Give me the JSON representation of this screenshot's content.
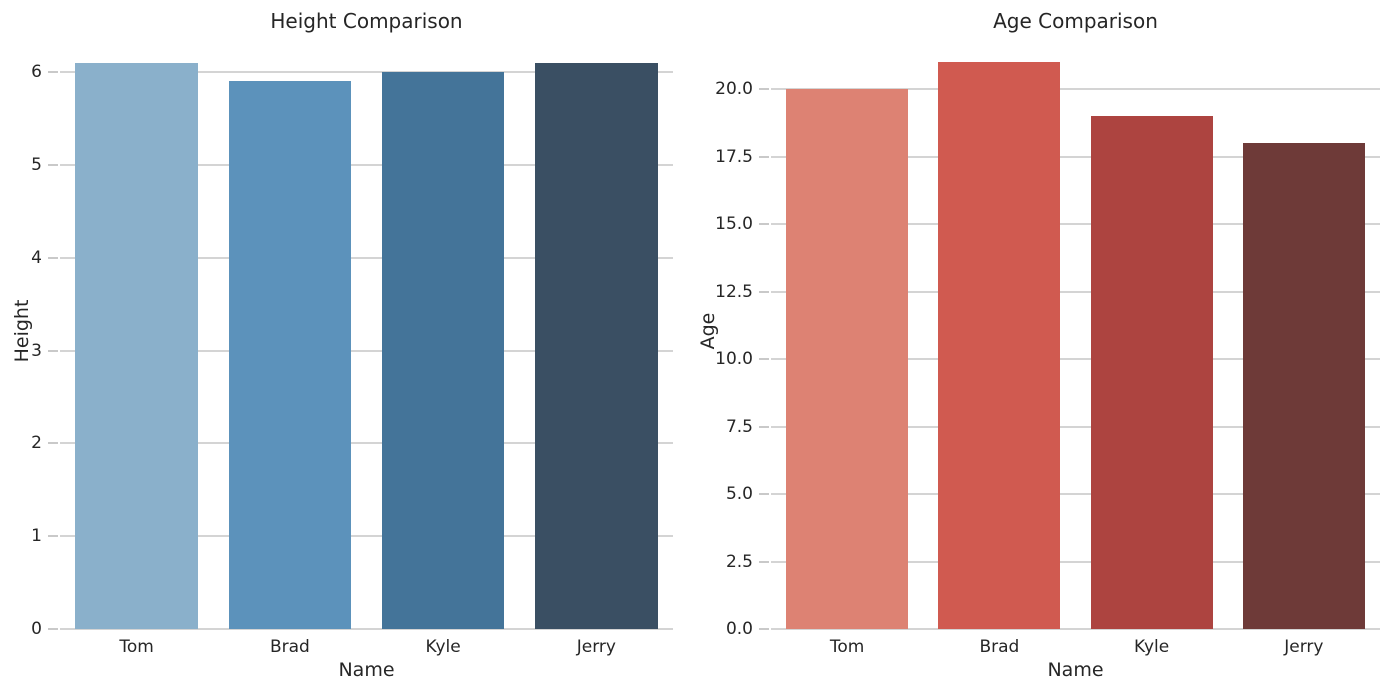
{
  "style": {
    "background": "#ffffff",
    "text_color": "#262626",
    "grid_color": "#d4d4d4",
    "tick_color": "#c9c9c9"
  },
  "chart_data": [
    {
      "type": "bar",
      "title": "Height Comparison",
      "xlabel": "Name",
      "ylabel": "Height",
      "categories": [
        "Tom",
        "Brad",
        "Kyle",
        "Jerry"
      ],
      "values": [
        6.1,
        5.9,
        6.0,
        6.1
      ],
      "bar_colors": [
        "#8AB0CB",
        "#5C92BB",
        "#447499",
        "#3A4F63"
      ],
      "yticks": [
        0,
        1,
        2,
        3,
        4,
        5,
        6
      ],
      "ytick_labels": [
        "0",
        "1",
        "2",
        "3",
        "4",
        "5",
        "6"
      ],
      "ylim": [
        0,
        6.41
      ],
      "grid": true,
      "legend": "none"
    },
    {
      "type": "bar",
      "title": "Age Comparison",
      "xlabel": "Name",
      "ylabel": "Age",
      "categories": [
        "Tom",
        "Brad",
        "Kyle",
        "Jerry"
      ],
      "values": [
        20,
        21,
        19,
        18
      ],
      "bar_colors": [
        "#DD8273",
        "#D05A50",
        "#AD4440",
        "#6E3A38"
      ],
      "yticks": [
        0,
        2.5,
        5,
        7.5,
        10,
        12.5,
        15,
        17.5,
        20
      ],
      "ytick_labels": [
        "0.0",
        "2.5",
        "5.0",
        "7.5",
        "10.0",
        "12.5",
        "15.0",
        "17.5",
        "20.0"
      ],
      "ylim": [
        0,
        22.05
      ],
      "grid": true,
      "legend": "none"
    }
  ]
}
